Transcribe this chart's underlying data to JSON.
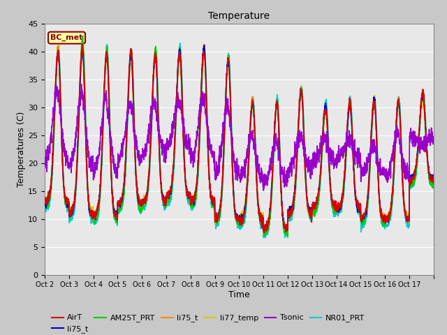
{
  "title": "Temperature",
  "xlabel": "Time",
  "ylabel": "Temperatures (C)",
  "ylim": [
    0,
    45
  ],
  "yticks": [
    0,
    5,
    10,
    15,
    20,
    25,
    30,
    35,
    40,
    45
  ],
  "fig_bg": "#c8c8c8",
  "plot_bg": "#e8e8e8",
  "annotation_text": "BC_met",
  "annotation_color": "#8B0000",
  "annotation_bg": "#FFFFAA",
  "series": {
    "AirT": {
      "color": "#dd0000",
      "lw": 1.2,
      "zorder": 5
    },
    "li75_t": {
      "color": "#0000cc",
      "lw": 1.2,
      "zorder": 4
    },
    "AM25T_PRT": {
      "color": "#00cc00",
      "lw": 1.2,
      "zorder": 6
    },
    "li75_t2": {
      "color": "#ff8800",
      "lw": 1.2,
      "zorder": 3
    },
    "li77_temp": {
      "color": "#cccc00",
      "lw": 1.2,
      "zorder": 2
    },
    "Tsonic": {
      "color": "#9900cc",
      "lw": 1.2,
      "zorder": 7
    },
    "NR01_PRT": {
      "color": "#00cccc",
      "lw": 1.2,
      "zorder": 1
    }
  },
  "x_tick_labels": [
    "Oct 2",
    "Oct 3",
    "Oct 4",
    "Oct 5",
    "Oct 6",
    "Oct 7",
    "Oct 8",
    "Oct 9",
    "Oct 10",
    "Oct 11",
    "Oct 12",
    "Oct 13",
    "Oct 14",
    "Oct 15",
    "Oct 16",
    "Oct 17"
  ],
  "n_days": 16,
  "points_per_day": 144
}
